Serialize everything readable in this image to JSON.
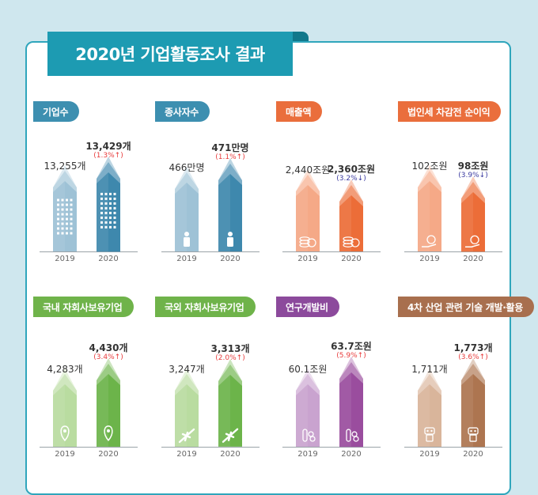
{
  "title": "2020년 기업활동조사 결과",
  "colors": {
    "banner": "#1d9bb2",
    "up": "#e83c3c",
    "down": "#3a3aa0"
  },
  "chart_data": [
    {
      "type": "bar",
      "title": "기업수",
      "unit": "개",
      "categories": [
        "2019",
        "2020"
      ],
      "values": [
        13255,
        13429
      ],
      "labels": [
        "13,255개",
        "13,429개"
      ],
      "change": "(1.3%↑)",
      "direction": "up",
      "icon": "building-icon",
      "tab_color": "#3d8fb0",
      "colors": [
        "#9ec2d6",
        "#3e88ad"
      ]
    },
    {
      "type": "bar",
      "title": "종사자수",
      "unit": "만명",
      "categories": [
        "2019",
        "2020"
      ],
      "values": [
        466,
        471
      ],
      "labels": [
        "466만명",
        "471만명"
      ],
      "change": "(1.1%↑)",
      "direction": "up",
      "icon": "person-icon",
      "tab_color": "#3d8fb0",
      "colors": [
        "#9ec2d6",
        "#3e88ad"
      ]
    },
    {
      "type": "bar",
      "title": "매출액",
      "unit": "조원",
      "categories": [
        "2019",
        "2020"
      ],
      "values": [
        2440,
        2360
      ],
      "labels": [
        "2,440조원",
        "2,360조원"
      ],
      "change": "(3.2%↓)",
      "direction": "down",
      "icon": "coins-icon",
      "tab_color": "#ea6e3c",
      "colors": [
        "#f5a987",
        "#ec6d38"
      ]
    },
    {
      "type": "bar",
      "title": "법인세 차감전 순이익",
      "unit": "조원",
      "categories": [
        "2019",
        "2020"
      ],
      "values": [
        102,
        98
      ],
      "labels": [
        "102조원",
        "98조원"
      ],
      "change": "(3.9%↓)",
      "direction": "down",
      "icon": "money-hand-icon",
      "tab_color": "#ea6e3c",
      "colors": [
        "#f5a987",
        "#ec6d38"
      ]
    },
    {
      "type": "bar",
      "title": "국내 자회사보유기업",
      "unit": "개",
      "categories": [
        "2019",
        "2020"
      ],
      "values": [
        4283,
        4430
      ],
      "labels": [
        "4,283개",
        "4,430개"
      ],
      "change": "(3.4%↑)",
      "direction": "up",
      "icon": "location-pin-icon",
      "tab_color": "#6fb34a",
      "colors": [
        "#b9dca0",
        "#6cb44a"
      ]
    },
    {
      "type": "bar",
      "title": "국외 자회사보유기업",
      "unit": "개",
      "categories": [
        "2019",
        "2020"
      ],
      "values": [
        3247,
        3313
      ],
      "labels": [
        "3,247개",
        "3,313개"
      ],
      "change": "(2.0%↑)",
      "direction": "up",
      "icon": "airplane-icon",
      "tab_color": "#6fb34a",
      "colors": [
        "#b9dca0",
        "#6cb44a"
      ]
    },
    {
      "type": "bar",
      "title": "연구개발비",
      "unit": "조원",
      "categories": [
        "2019",
        "2020"
      ],
      "values": [
        60.1,
        63.7
      ],
      "labels": [
        "60.1조원",
        "63.7조원"
      ],
      "change": "(5.9%↑)",
      "direction": "up",
      "icon": "test-tube-icon",
      "tab_color": "#8c4a9c",
      "colors": [
        "#c9a3cf",
        "#9a4d9e"
      ]
    },
    {
      "type": "bar",
      "title": "4차 산업 관련 기술 개발·활용",
      "unit": "개",
      "categories": [
        "2019",
        "2020"
      ],
      "values": [
        1711,
        1773
      ],
      "labels": [
        "1,711개",
        "1,773개"
      ],
      "change": "(3.6%↑)",
      "direction": "up",
      "icon": "robot-icon",
      "tab_color": "#a86f4e",
      "colors": [
        "#d9b59b",
        "#ad7550"
      ]
    }
  ]
}
